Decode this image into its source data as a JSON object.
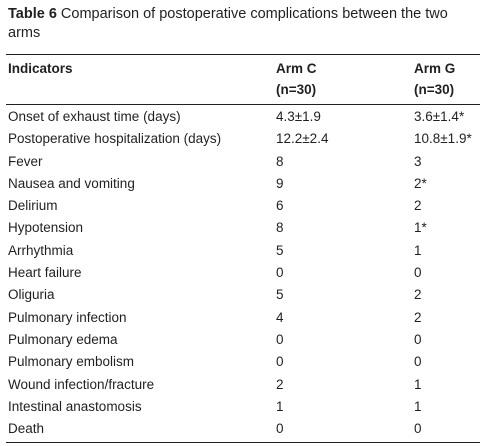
{
  "caption": {
    "label": "Table 6",
    "text": "Comparison of postoperative complications between the two arms"
  },
  "table": {
    "headers": {
      "indicators": "Indicators",
      "arm_c": "Arm C",
      "arm_c_n": "(n=30)",
      "arm_g": "Arm G",
      "arm_g_n": "(n=30)"
    },
    "rows": [
      {
        "indicator": "Onset of exhaust time (days)",
        "arm_c": "4.3±1.9",
        "arm_g": "3.6±1.4*"
      },
      {
        "indicator": "Postoperative hospitalization (days)",
        "arm_c": "12.2±2.4",
        "arm_g": "10.8±1.9*"
      },
      {
        "indicator": "Fever",
        "arm_c": "8",
        "arm_g": "3"
      },
      {
        "indicator": "Nausea and vomiting",
        "arm_c": "9",
        "arm_g": "2*"
      },
      {
        "indicator": "Delirium",
        "arm_c": "6",
        "arm_g": "2"
      },
      {
        "indicator": "Hypotension",
        "arm_c": "8",
        "arm_g": "1*"
      },
      {
        "indicator": "Arrhythmia",
        "arm_c": "5",
        "arm_g": "1"
      },
      {
        "indicator": "Heart failure",
        "arm_c": "0",
        "arm_g": "0"
      },
      {
        "indicator": "Oliguria",
        "arm_c": "5",
        "arm_g": "2"
      },
      {
        "indicator": "Pulmonary infection",
        "arm_c": "4",
        "arm_g": "2"
      },
      {
        "indicator": "Pulmonary edema",
        "arm_c": "0",
        "arm_g": "0"
      },
      {
        "indicator": "Pulmonary embolism",
        "arm_c": "0",
        "arm_g": "0"
      },
      {
        "indicator": "Wound infection/fracture",
        "arm_c": "2",
        "arm_g": "1"
      },
      {
        "indicator": "Intestinal anastomosis",
        "arm_c": "1",
        "arm_g": "1"
      },
      {
        "indicator": "Death",
        "arm_c": "0",
        "arm_g": "0"
      }
    ]
  }
}
